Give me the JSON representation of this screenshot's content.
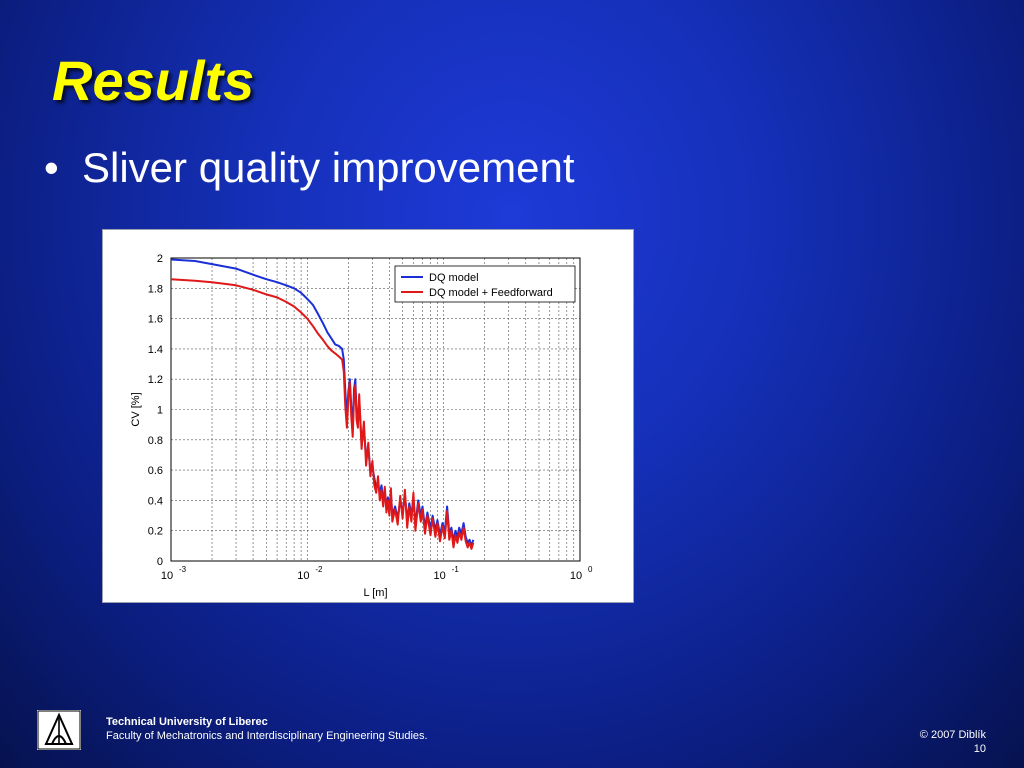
{
  "slide": {
    "title": "Results",
    "bullets": [
      "Sliver quality improvement"
    ]
  },
  "footer": {
    "organization": "Technical University of Liberec",
    "faculty": "Faculty of Mechatronics and Interdisciplinary Engineering Studies.",
    "copyright": "© 2007 Diblík",
    "page_number": "10"
  },
  "colors": {
    "title": "#ffff00",
    "text": "#ffffff",
    "series_dq": "#1a2fd8",
    "series_ff": "#e01818"
  },
  "chart_data": {
    "type": "line",
    "xscale": "log",
    "xlim": [
      0.001,
      1
    ],
    "ylim": [
      0,
      2
    ],
    "grid": true,
    "legend_position": "top-right",
    "xlabel": "L [m]",
    "ylabel": "CV [%]",
    "x_tick_labels": [
      {
        "base": "10",
        "exp": "-3"
      },
      {
        "base": "10",
        "exp": "-2"
      },
      {
        "base": "10",
        "exp": "-1"
      },
      {
        "base": "10",
        "exp": "0"
      }
    ],
    "y_tick_labels": [
      "0",
      "0.2",
      "0.4",
      "0.6",
      "0.8",
      "1",
      "1.2",
      "1.4",
      "1.6",
      "1.8",
      "2"
    ],
    "series": [
      {
        "name": "DQ model",
        "color": "#1a2fd8",
        "points": [
          [
            0.001,
            1.99
          ],
          [
            0.0015,
            1.98
          ],
          [
            0.002,
            1.96
          ],
          [
            0.003,
            1.93
          ],
          [
            0.004,
            1.89
          ],
          [
            0.005,
            1.86
          ],
          [
            0.006,
            1.84
          ],
          [
            0.007,
            1.82
          ],
          [
            0.008,
            1.8
          ],
          [
            0.009,
            1.77
          ],
          [
            0.01,
            1.73
          ],
          [
            0.011,
            1.69
          ],
          [
            0.012,
            1.63
          ],
          [
            0.013,
            1.57
          ],
          [
            0.014,
            1.51
          ],
          [
            0.015,
            1.47
          ],
          [
            0.016,
            1.43
          ],
          [
            0.017,
            1.42
          ],
          [
            0.018,
            1.4
          ],
          [
            0.0185,
            1.33
          ],
          [
            0.019,
            1.12
          ],
          [
            0.0195,
            0.95
          ],
          [
            0.02,
            1.12
          ],
          [
            0.0205,
            1.2
          ],
          [
            0.021,
            1.02
          ],
          [
            0.0215,
            0.87
          ],
          [
            0.022,
            1.13
          ],
          [
            0.0225,
            1.2
          ],
          [
            0.023,
            0.98
          ],
          [
            0.0235,
            0.92
          ],
          [
            0.024,
            1.06
          ],
          [
            0.025,
            0.78
          ],
          [
            0.026,
            0.88
          ],
          [
            0.027,
            0.68
          ],
          [
            0.028,
            0.74
          ],
          [
            0.029,
            0.6
          ],
          [
            0.03,
            0.62
          ],
          [
            0.031,
            0.55
          ],
          [
            0.032,
            0.48
          ],
          [
            0.033,
            0.52
          ],
          [
            0.034,
            0.44
          ],
          [
            0.035,
            0.5
          ],
          [
            0.036,
            0.4
          ],
          [
            0.037,
            0.46
          ],
          [
            0.038,
            0.36
          ],
          [
            0.039,
            0.42
          ],
          [
            0.04,
            0.34
          ],
          [
            0.041,
            0.45
          ],
          [
            0.042,
            0.3
          ],
          [
            0.044,
            0.36
          ],
          [
            0.046,
            0.28
          ],
          [
            0.048,
            0.4
          ],
          [
            0.05,
            0.32
          ],
          [
            0.052,
            0.44
          ],
          [
            0.054,
            0.26
          ],
          [
            0.056,
            0.38
          ],
          [
            0.058,
            0.3
          ],
          [
            0.06,
            0.42
          ],
          [
            0.062,
            0.24
          ],
          [
            0.065,
            0.4
          ],
          [
            0.068,
            0.3
          ],
          [
            0.07,
            0.36
          ],
          [
            0.073,
            0.22
          ],
          [
            0.076,
            0.32
          ],
          [
            0.08,
            0.21
          ],
          [
            0.083,
            0.3
          ],
          [
            0.087,
            0.2
          ],
          [
            0.09,
            0.27
          ],
          [
            0.094,
            0.17
          ],
          [
            0.098,
            0.25
          ],
          [
            0.102,
            0.19
          ],
          [
            0.106,
            0.36
          ],
          [
            0.11,
            0.18
          ],
          [
            0.114,
            0.22
          ],
          [
            0.118,
            0.13
          ],
          [
            0.122,
            0.2
          ],
          [
            0.126,
            0.16
          ],
          [
            0.13,
            0.22
          ],
          [
            0.135,
            0.18
          ],
          [
            0.14,
            0.25
          ],
          [
            0.145,
            0.16
          ],
          [
            0.15,
            0.12
          ],
          [
            0.155,
            0.14
          ],
          [
            0.16,
            0.1
          ],
          [
            0.165,
            0.14
          ]
        ]
      },
      {
        "name": "DQ model + Feedforward",
        "color": "#e01818",
        "points": [
          [
            0.001,
            1.86
          ],
          [
            0.0015,
            1.85
          ],
          [
            0.002,
            1.84
          ],
          [
            0.003,
            1.82
          ],
          [
            0.004,
            1.79
          ],
          [
            0.005,
            1.76
          ],
          [
            0.006,
            1.74
          ],
          [
            0.007,
            1.71
          ],
          [
            0.008,
            1.68
          ],
          [
            0.009,
            1.64
          ],
          [
            0.01,
            1.6
          ],
          [
            0.011,
            1.55
          ],
          [
            0.012,
            1.5
          ],
          [
            0.013,
            1.46
          ],
          [
            0.014,
            1.42
          ],
          [
            0.015,
            1.39
          ],
          [
            0.016,
            1.37
          ],
          [
            0.017,
            1.35
          ],
          [
            0.018,
            1.33
          ],
          [
            0.0185,
            1.25
          ],
          [
            0.019,
            1.02
          ],
          [
            0.0195,
            0.88
          ],
          [
            0.02,
            1.08
          ],
          [
            0.0205,
            1.18
          ],
          [
            0.021,
            0.95
          ],
          [
            0.0215,
            0.82
          ],
          [
            0.022,
            1.07
          ],
          [
            0.0225,
            1.16
          ],
          [
            0.023,
            0.93
          ],
          [
            0.0235,
            0.88
          ],
          [
            0.024,
            1.1
          ],
          [
            0.025,
            0.74
          ],
          [
            0.026,
            0.92
          ],
          [
            0.027,
            0.63
          ],
          [
            0.028,
            0.78
          ],
          [
            0.029,
            0.56
          ],
          [
            0.03,
            0.66
          ],
          [
            0.031,
            0.5
          ],
          [
            0.032,
            0.45
          ],
          [
            0.033,
            0.56
          ],
          [
            0.034,
            0.4
          ],
          [
            0.035,
            0.47
          ],
          [
            0.036,
            0.36
          ],
          [
            0.037,
            0.49
          ],
          [
            0.038,
            0.32
          ],
          [
            0.039,
            0.4
          ],
          [
            0.04,
            0.3
          ],
          [
            0.041,
            0.48
          ],
          [
            0.042,
            0.26
          ],
          [
            0.044,
            0.34
          ],
          [
            0.046,
            0.24
          ],
          [
            0.048,
            0.43
          ],
          [
            0.05,
            0.28
          ],
          [
            0.052,
            0.47
          ],
          [
            0.054,
            0.22
          ],
          [
            0.056,
            0.36
          ],
          [
            0.058,
            0.26
          ],
          [
            0.06,
            0.45
          ],
          [
            0.062,
            0.2
          ],
          [
            0.065,
            0.38
          ],
          [
            0.068,
            0.26
          ],
          [
            0.07,
            0.34
          ],
          [
            0.073,
            0.18
          ],
          [
            0.076,
            0.3
          ],
          [
            0.08,
            0.17
          ],
          [
            0.083,
            0.28
          ],
          [
            0.087,
            0.16
          ],
          [
            0.09,
            0.25
          ],
          [
            0.094,
            0.13
          ],
          [
            0.098,
            0.23
          ],
          [
            0.102,
            0.15
          ],
          [
            0.106,
            0.33
          ],
          [
            0.11,
            0.14
          ],
          [
            0.114,
            0.2
          ],
          [
            0.118,
            0.09
          ],
          [
            0.122,
            0.17
          ],
          [
            0.126,
            0.12
          ],
          [
            0.13,
            0.19
          ],
          [
            0.135,
            0.14
          ],
          [
            0.14,
            0.22
          ],
          [
            0.145,
            0.13
          ],
          [
            0.15,
            0.09
          ],
          [
            0.155,
            0.12
          ],
          [
            0.16,
            0.08
          ],
          [
            0.165,
            0.12
          ]
        ]
      }
    ]
  }
}
